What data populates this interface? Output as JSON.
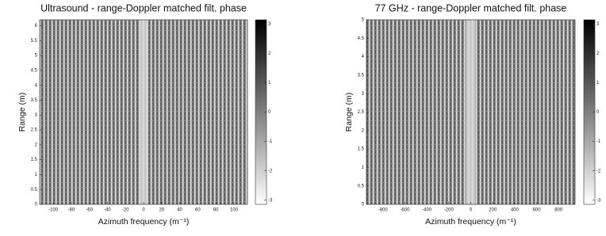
{
  "chart_data": [
    {
      "type": "heatmap",
      "title": "Ultrasound - range-Doppler matched filt. phase",
      "x_label": "Azimuth frequency (m⁻¹)",
      "y_label": "Range (m)",
      "xlim": [
        -115,
        115
      ],
      "xticks": [
        -100,
        -80,
        -60,
        -40,
        -20,
        0,
        20,
        40,
        60,
        80,
        100
      ],
      "ylim": [
        0,
        6.2
      ],
      "yticks": [
        0,
        0.5,
        1,
        1.5,
        2,
        2.5,
        3,
        3.5,
        4,
        4.5,
        5,
        5.5,
        6
      ],
      "clim": [
        -3.14,
        3.14
      ],
      "cticks": [
        3,
        2,
        1,
        0,
        -1,
        -2,
        -3
      ]
    },
    {
      "type": "heatmap",
      "title": "77 GHz - range-Doppler matched filt. phase",
      "x_label": "Azimuth frequency (m⁻¹)",
      "y_label": "Range (m)",
      "xlim": [
        -950,
        950
      ],
      "xticks": [
        -800,
        -600,
        -400,
        -200,
        0,
        200,
        400,
        600,
        800
      ],
      "ylim": [
        0,
        5
      ],
      "yticks": [
        0,
        0.5,
        1,
        1.5,
        2,
        2.5,
        3,
        3.5,
        4,
        4.5,
        5
      ],
      "clim": [
        -3.14,
        3.14
      ],
      "cticks": [
        3,
        2,
        1,
        0,
        -1,
        -2,
        -3
      ]
    }
  ]
}
